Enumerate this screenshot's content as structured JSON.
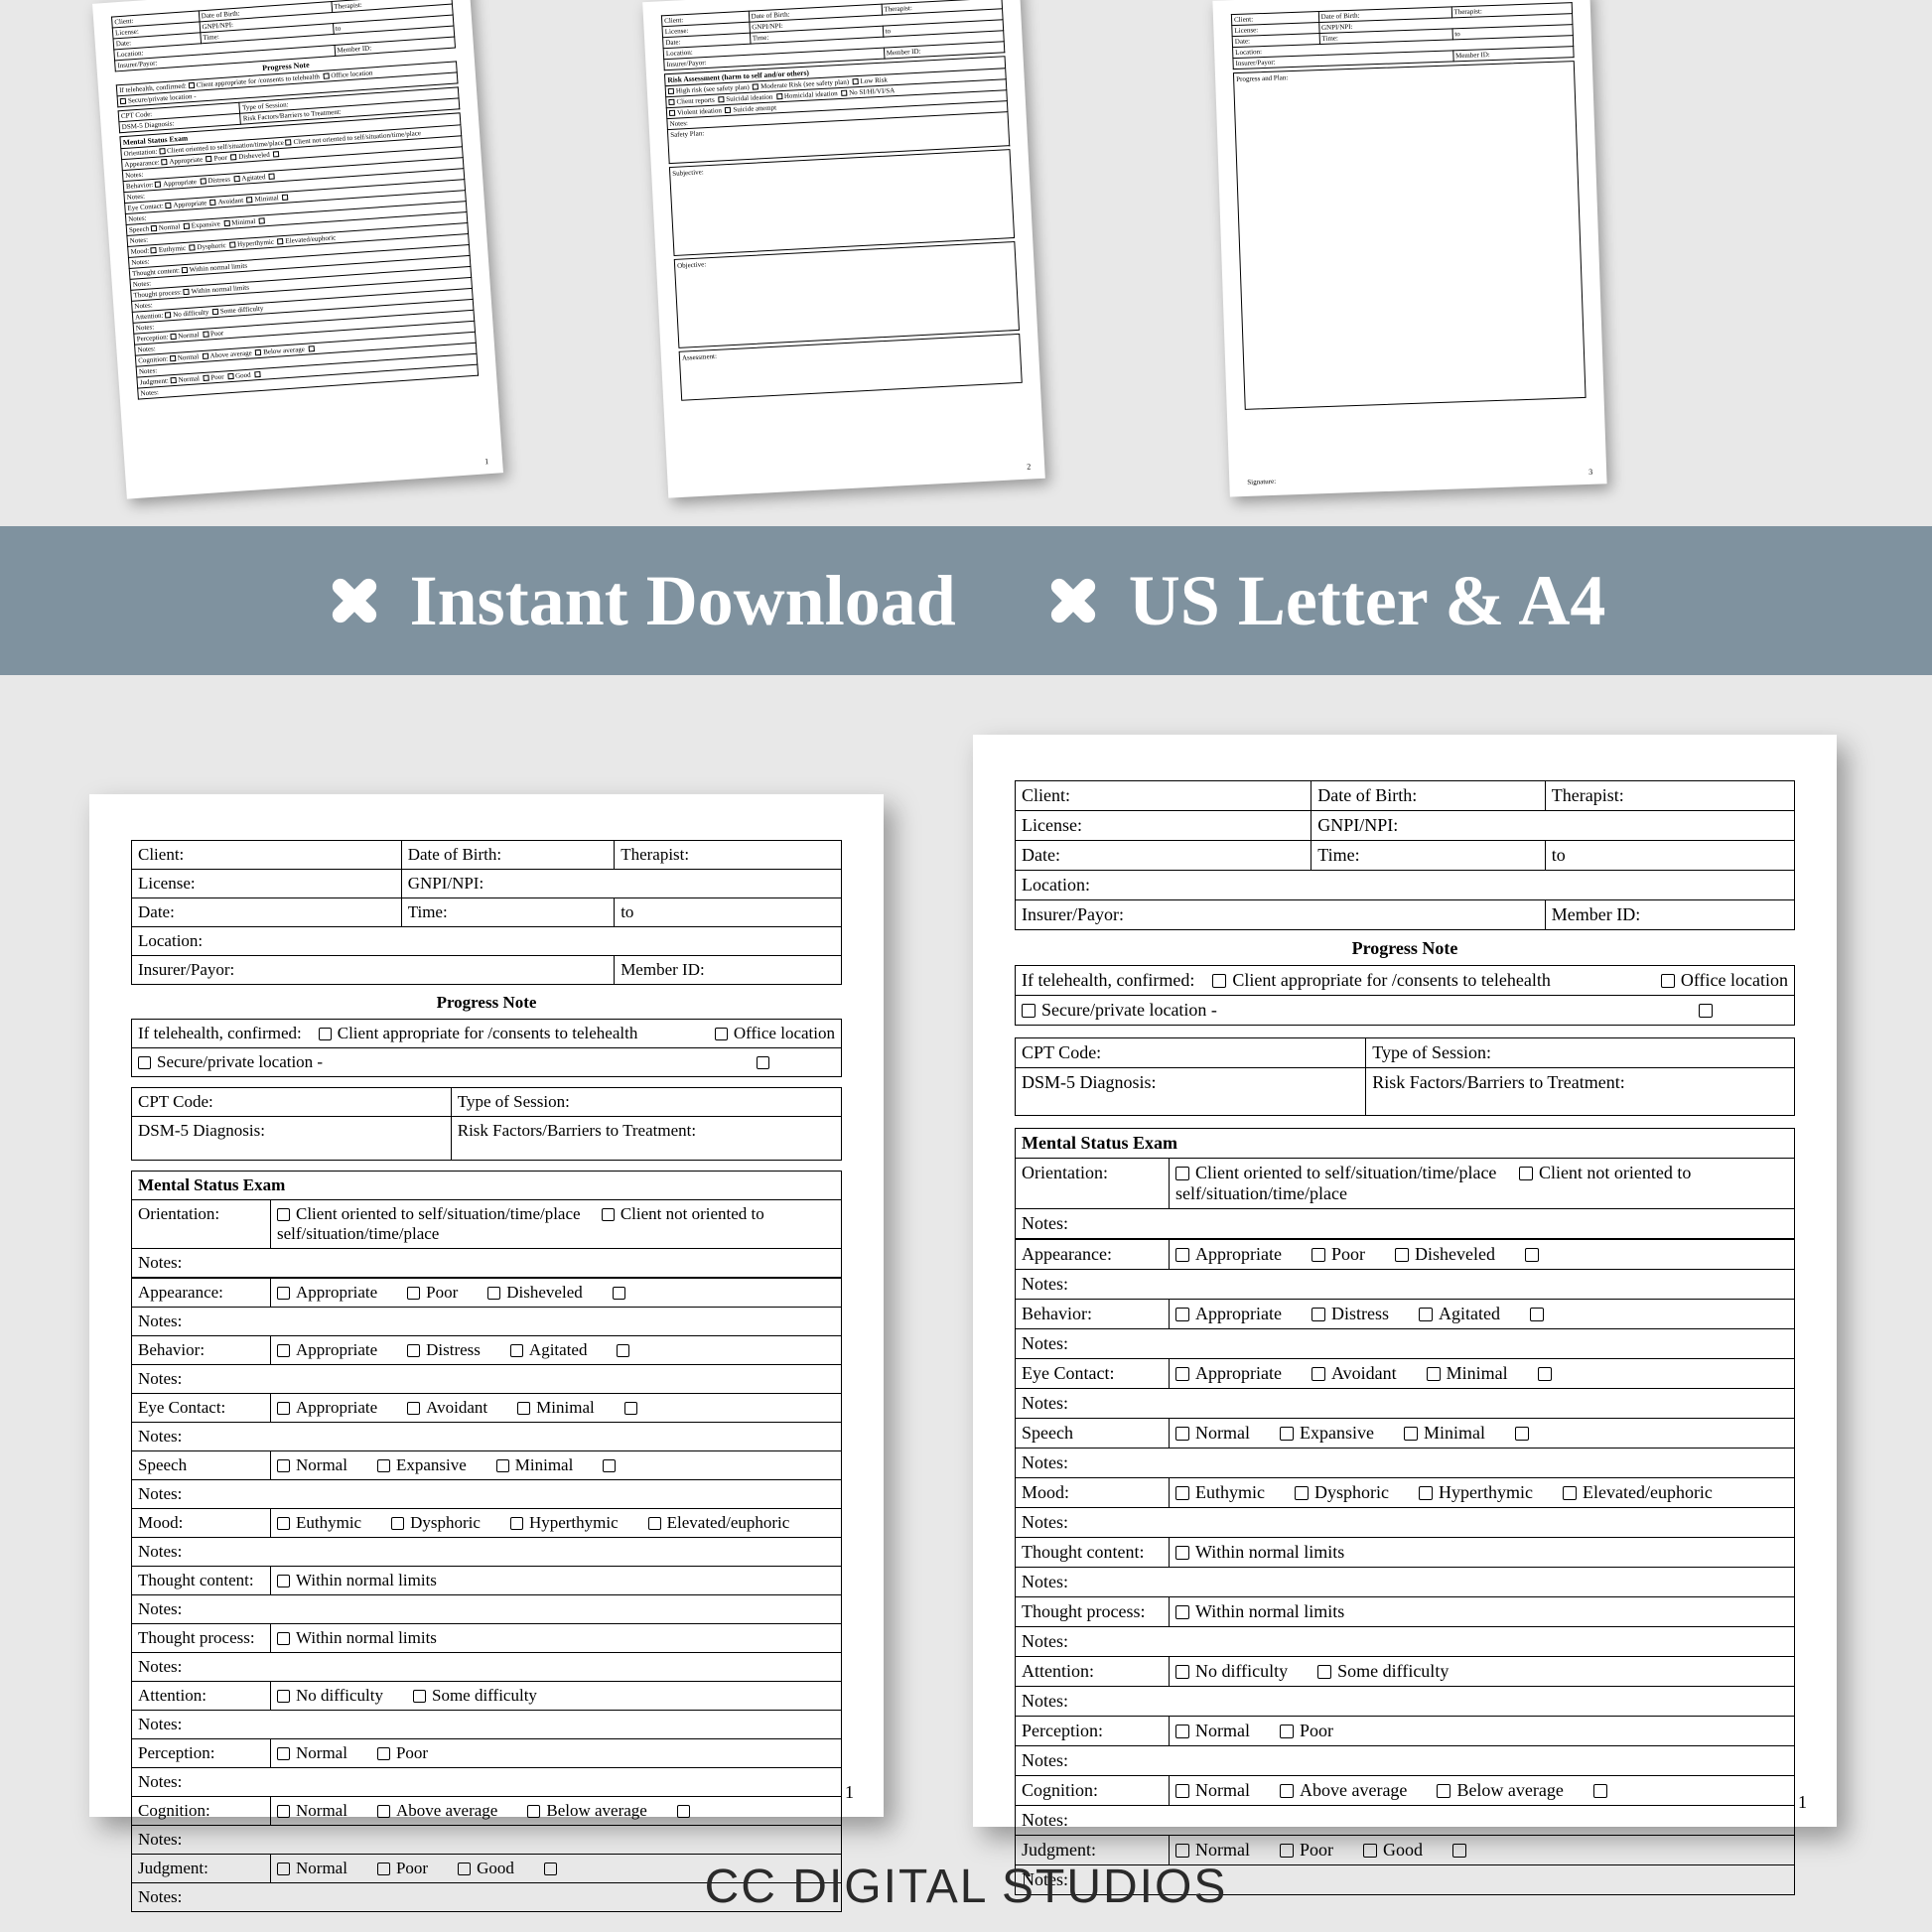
{
  "banner": {
    "bg_color": "#7f929f",
    "text_color": "#ffffff",
    "items": [
      "Instant Download",
      "US Letter & A4"
    ]
  },
  "brand": "CC DIGITAL STUDIOS",
  "header_fields": {
    "client": "Client:",
    "dob": "Date of Birth:",
    "therapist": "Therapist:",
    "license": "License:",
    "gnpi": "GNPI/NPI:",
    "date": "Date:",
    "time": "Time:",
    "to": "to",
    "location": "Location:",
    "insurer": "Insurer/Payor:",
    "member": "Member ID:"
  },
  "progress_note_title": "Progress Note",
  "telehealth": {
    "label": "If telehealth, confirmed:",
    "opt1": "Client appropriate for /consents to telehealth",
    "opt2": "Office location",
    "opt3": "Secure/private location -"
  },
  "codes": {
    "cpt": "CPT Code:",
    "session_type": "Type of Session:",
    "dsm": "DSM-5 Diagnosis:",
    "risk": "Risk Factors/Barriers to Treatment:"
  },
  "mse_title": "Mental Status Exam",
  "orientation": {
    "label": "Orientation:",
    "opt1": "Client oriented to self/situation/time/place",
    "opt2": "Client not oriented to self/situation/time/place"
  },
  "notes_label": "Notes:",
  "mse_rows": [
    {
      "label": "Appearance:",
      "opts": [
        "Appropriate",
        "Poor",
        "Disheveled",
        ""
      ]
    },
    {
      "label": "Behavior:",
      "opts": [
        "Appropriate",
        "Distress",
        "Agitated",
        ""
      ]
    },
    {
      "label": "Eye Contact:",
      "opts": [
        "Appropriate",
        "Avoidant",
        "Minimal",
        ""
      ]
    },
    {
      "label": "Speech",
      "opts": [
        "Normal",
        "Expansive",
        "Minimal",
        ""
      ]
    },
    {
      "label": "Mood:",
      "opts": [
        "Euthymic",
        "Dysphoric",
        "Hyperthymic",
        "Elevated/euphoric"
      ]
    },
    {
      "label": "Thought content:",
      "opts": [
        "Within normal limits"
      ]
    },
    {
      "label": "Thought process:",
      "opts": [
        "Within normal limits"
      ]
    },
    {
      "label": "Attention:",
      "opts": [
        "No difficulty",
        "Some difficulty"
      ]
    },
    {
      "label": "Perception:",
      "opts": [
        "Normal",
        "Poor"
      ]
    },
    {
      "label": "Cognition:",
      "opts": [
        "Normal",
        "Above average",
        "Below average",
        ""
      ]
    },
    {
      "label": "Judgment:",
      "opts": [
        "Normal",
        "Poor",
        "Good",
        ""
      ]
    }
  ],
  "page_number": "1",
  "mini": {
    "p2": {
      "risk_title": "Risk Assessment (harm to self and/or others)",
      "risk_opts1": [
        "High risk (see safety plan)",
        "Moderate Risk (see safety plan)",
        "Low Risk"
      ],
      "risk_opts2": [
        "Client reports",
        "Suicidal ideation",
        "Homicidal ideation",
        "No SI/HI/VI/SA"
      ],
      "risk_opts3": [
        "Violent ideation",
        "Suicide attempt"
      ],
      "notes": "Notes:",
      "safety": "Safety Plan:",
      "subjective": "Subjective:",
      "objective": "Objective:",
      "assessment": "Assessment:",
      "pgnum": "2"
    },
    "p3": {
      "plan": "Progress and Plan:",
      "sig": "Signature:",
      "pgnum": "3"
    }
  }
}
